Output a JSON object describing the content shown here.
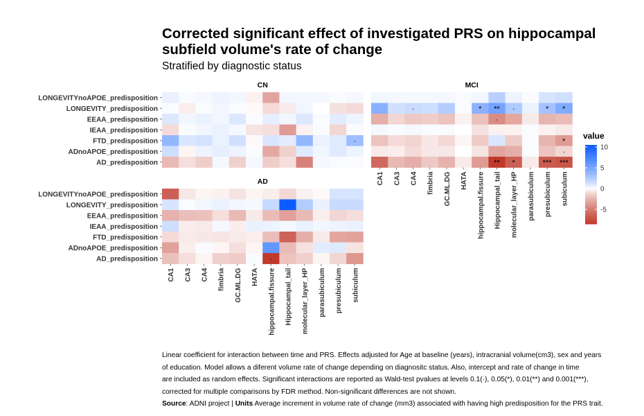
{
  "header": {
    "title_line1": "Corrected significant effect of investigated PRS on hippocampal",
    "title_line2": "subfield volume's rate of change",
    "subtitle": "Stratified by diagnostic status"
  },
  "caption": {
    "line1": "Linear coefficient for interaction between time and PRS. Effects adjusted for Age at baseline (years), intracranial volume(cm3), sex and years",
    "line2": "of education. Model allows a diferent volume rate of change depending on diagnositc status. Also, intercept and rate of change in time",
    "line3": "are included as random effects. Significant interactions are reported as Wald-test pvalues at levels 0.1(·), 0.05(*), 0.01(**) and 0.001(***),",
    "line4": "corrected for multiple comparisons by FDR method. Non-significant differences are not shown.",
    "source_label": "Source",
    "source_text": ": ADNI project | ",
    "units_label": "Units",
    "units_text": " Average increment in volume rate of change (mm3) associated with having high predisposition for the PRS trait."
  },
  "colors": {
    "low": "#c0392b",
    "mid": "#ffffff",
    "high": "#0b5cff",
    "grid": "#ebebeb"
  },
  "chart_data": {
    "type": "heatmap",
    "rows": [
      "LONGEVITYnoAPOE_predisposition",
      "LONGEVITY_predisposition",
      "EEAA_predisposition",
      "IEAA_predisposition",
      "FTD_predisposition",
      "ADnoAPOE_predisposition",
      "AD_predisposition"
    ],
    "columns": [
      "CA1",
      "CA3",
      "CA4",
      "fimbria",
      "GC.ML.DG",
      "HATA",
      "hippocampal.fissure",
      "Hippocampal_tail",
      "molecular_layer_HP",
      "parasubiculum",
      "presubiculum",
      "subiculum"
    ],
    "legend": {
      "title": "value",
      "ticks": [
        10,
        5,
        0,
        -5
      ],
      "range": [
        -8.5,
        10.5
      ]
    },
    "panels": [
      {
        "name": "CN",
        "values": [
          [
            0.5,
            0.1,
            0.2,
            0.4,
            0.3,
            -0.3,
            -3.2,
            0.3,
            0.3,
            0.2,
            0.1,
            0.2
          ],
          [
            0.1,
            -0.4,
            0.1,
            0.3,
            0.1,
            -0.1,
            -1.0,
            -0.5,
            0.3,
            0,
            -0.8,
            -1.0
          ],
          [
            0.9,
            0.3,
            0.5,
            0.3,
            0.9,
            0.1,
            0.6,
            0.3,
            0.9,
            0.1,
            0.7,
            0.4
          ],
          [
            -1.0,
            0.1,
            0.3,
            0.5,
            0.2,
            -0.7,
            -0.9,
            -3.6,
            -0.3,
            0.1,
            -1.2,
            0.1
          ],
          [
            3.8,
            1.0,
            1.2,
            0.5,
            1.3,
            -0.1,
            1.0,
            0.7,
            3.8,
            0.5,
            0.8,
            3.3
          ],
          [
            1.4,
            -0.2,
            0.4,
            0.6,
            0.4,
            0.1,
            -3.0,
            -1.4,
            0.8,
            0.3,
            0.8,
            0.4
          ],
          [
            -2.3,
            -0.9,
            -1.5,
            0.2,
            -1.4,
            0.2,
            -1.5,
            -0.9,
            -4.8,
            0.2,
            0.1,
            0.1
          ]
        ],
        "significance": [
          [
            "",
            "",
            "",
            "",
            "",
            "",
            "",
            "",
            "",
            "",
            "",
            ""
          ],
          [
            "",
            "",
            "",
            "",
            "",
            "",
            "",
            "",
            "",
            "",
            "",
            ""
          ],
          [
            "",
            "",
            "",
            "",
            "",
            "",
            "",
            "",
            "",
            "",
            "",
            ""
          ],
          [
            "",
            "",
            "",
            "",
            "",
            "",
            "",
            "",
            "",
            "",
            "",
            ""
          ],
          [
            "",
            "",
            "",
            "",
            "",
            "",
            "",
            "",
            "",
            "",
            "",
            "·"
          ],
          [
            "",
            "",
            "",
            "",
            "",
            "",
            "",
            "",
            "",
            "",
            "",
            ""
          ],
          [
            "",
            "",
            "",
            "",
            "",
            "",
            "",
            "",
            "",
            "",
            "",
            ""
          ]
        ]
      },
      {
        "name": "MCI",
        "values": [
          [
            0.3,
            0.2,
            0.2,
            0.2,
            0.2,
            0.1,
            0.3,
            2.2,
            0.4,
            0.1,
            1.1,
            1.3
          ],
          [
            4.2,
            1.3,
            1.6,
            1.4,
            2.4,
            0.1,
            4.1,
            5.2,
            2.6,
            0.5,
            3.1,
            4.6
          ],
          [
            -2.8,
            -1.2,
            -1.7,
            -1.5,
            -1.9,
            -0.3,
            -2.0,
            -4.3,
            -3.1,
            -0.5,
            -2.5,
            -2.2
          ],
          [
            0.2,
            0.1,
            0.2,
            0.1,
            0.1,
            0,
            -0.8,
            -0.3,
            -0.3,
            0.1,
            -0.3,
            -0.5
          ],
          [
            -1.9,
            -1.0,
            -1.3,
            -0.6,
            -1.1,
            -0.2,
            -1.6,
            1.0,
            -1.6,
            0.1,
            -2.5,
            -3.6
          ],
          [
            -0.5,
            -0.4,
            -1.0,
            -0.6,
            -0.6,
            0,
            -0.7,
            -3.2,
            -2.8,
            0.1,
            -1.9,
            -1.2
          ],
          [
            -6.0,
            -2.3,
            -2.8,
            -1.7,
            -2.6,
            -0.5,
            -3.6,
            -8.5,
            -6.5,
            -0.5,
            -6.7,
            -7.0
          ]
        ],
        "significance": [
          [
            "",
            "",
            "",
            "",
            "",
            "",
            "",
            "",
            "",
            "",
            "",
            ""
          ],
          [
            "",
            "",
            "·",
            "",
            "",
            "",
            "*",
            "**",
            "·",
            "",
            "*",
            "*"
          ],
          [
            "",
            "",
            "",
            "",
            "",
            "",
            "",
            "·",
            "",
            "",
            "",
            ""
          ],
          [
            "",
            "",
            "",
            "",
            "",
            "",
            "",
            "",
            "",
            "",
            "",
            ""
          ],
          [
            "",
            "",
            "",
            "",
            "",
            "",
            "",
            "",
            "",
            "",
            "",
            "*"
          ],
          [
            "",
            "",
            "",
            "",
            "",
            "",
            "",
            "",
            "",
            "",
            "",
            "·"
          ],
          [
            "",
            "",
            "",
            "",
            "",
            "",
            "",
            "**",
            "*",
            "",
            "***",
            "***"
          ]
        ]
      },
      {
        "name": "AD",
        "values": [
          [
            -6.5,
            -0.6,
            -0.2,
            -0.3,
            -0.7,
            -0.2,
            -0.4,
            -1.1,
            -0.3,
            -0.1,
            1.1,
            1.1
          ],
          [
            1.1,
            0.1,
            0.3,
            0.5,
            0.3,
            0.2,
            1.7,
            10.5,
            2.4,
            0.5,
            1.6,
            1.6
          ],
          [
            -2.6,
            -2.1,
            -2.0,
            -0.9,
            -2.3,
            -0.5,
            -2.2,
            -3.4,
            -2.3,
            -0.4,
            -1.2,
            -0.9
          ],
          [
            1.4,
            -0.4,
            -0.5,
            0.2,
            -0.4,
            0.5,
            0.4,
            0.2,
            0.5,
            0.3,
            0.4,
            0.5
          ],
          [
            -1.0,
            -0.5,
            -0.6,
            -0.7,
            -0.5,
            -0.4,
            -2.1,
            -6.3,
            -2.8,
            -0.5,
            -3.1,
            -3.3
          ],
          [
            -3.3,
            -0.4,
            0.1,
            -0.2,
            -0.9,
            -0.2,
            6.0,
            -2.2,
            -0.8,
            0.7,
            0.8,
            -0.7
          ],
          [
            -2.0,
            -0.9,
            -0.2,
            -1.4,
            -1.6,
            0.1,
            -8.5,
            -1.9,
            -1.4,
            -0.2,
            -1.2,
            -3.8
          ]
        ],
        "significance": [
          [
            "",
            "",
            "",
            "",
            "",
            "",
            "",
            "",
            "",
            "",
            "",
            ""
          ],
          [
            "",
            "",
            "",
            "",
            "",
            "",
            "",
            "",
            "",
            "",
            "",
            ""
          ],
          [
            "",
            "",
            "",
            "",
            "",
            "",
            "",
            "",
            "",
            "",
            "",
            ""
          ],
          [
            "",
            "",
            "",
            "",
            "",
            "",
            "",
            "",
            "",
            "",
            "",
            ""
          ],
          [
            "",
            "",
            "",
            "",
            "",
            "",
            "",
            "",
            "",
            "",
            "",
            ""
          ],
          [
            "",
            "",
            "",
            "",
            "",
            "",
            "",
            "",
            "",
            "",
            "",
            ""
          ],
          [
            "",
            "",
            "",
            "",
            "",
            "",
            "·",
            "",
            "",
            "",
            "",
            ""
          ]
        ]
      }
    ]
  }
}
